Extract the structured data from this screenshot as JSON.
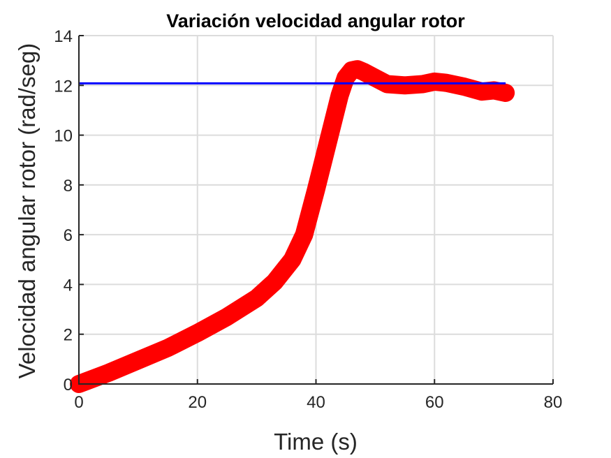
{
  "chart_data": {
    "type": "line",
    "title": "Variación velocidad angular rotor",
    "xlabel": "Time (s)",
    "ylabel": "Velocidad angular rotor (rad/seg)",
    "xlim": [
      0,
      80
    ],
    "ylim": [
      0,
      14
    ],
    "xticks": [
      0,
      20,
      40,
      60,
      80
    ],
    "yticks": [
      0,
      2,
      4,
      6,
      8,
      10,
      12,
      14
    ],
    "grid": true,
    "colors": {
      "measured": "#ff0000",
      "reference": "#0000ff",
      "grid": "#dcdcdc",
      "axis": "#262626"
    },
    "series": [
      {
        "style": "thick-marker-line",
        "color": "#ff0000",
        "x": [
          0,
          5,
          10,
          15,
          20,
          25,
          30,
          33,
          36,
          38,
          40,
          42,
          44,
          45,
          46,
          47,
          48,
          50,
          52,
          55,
          58,
          60,
          62,
          65,
          68,
          70,
          72
        ],
        "y": [
          0,
          0.45,
          0.95,
          1.45,
          2.05,
          2.7,
          3.45,
          4.1,
          5.0,
          6.0,
          7.8,
          9.7,
          11.6,
          12.3,
          12.6,
          12.65,
          12.55,
          12.3,
          12.05,
          12.0,
          12.05,
          12.15,
          12.1,
          11.95,
          11.75,
          11.8,
          11.7
        ]
      },
      {
        "style": "thin-line",
        "color": "#0000ff",
        "x": [
          0,
          72
        ],
        "y": [
          12.08,
          12.08
        ]
      }
    ]
  }
}
